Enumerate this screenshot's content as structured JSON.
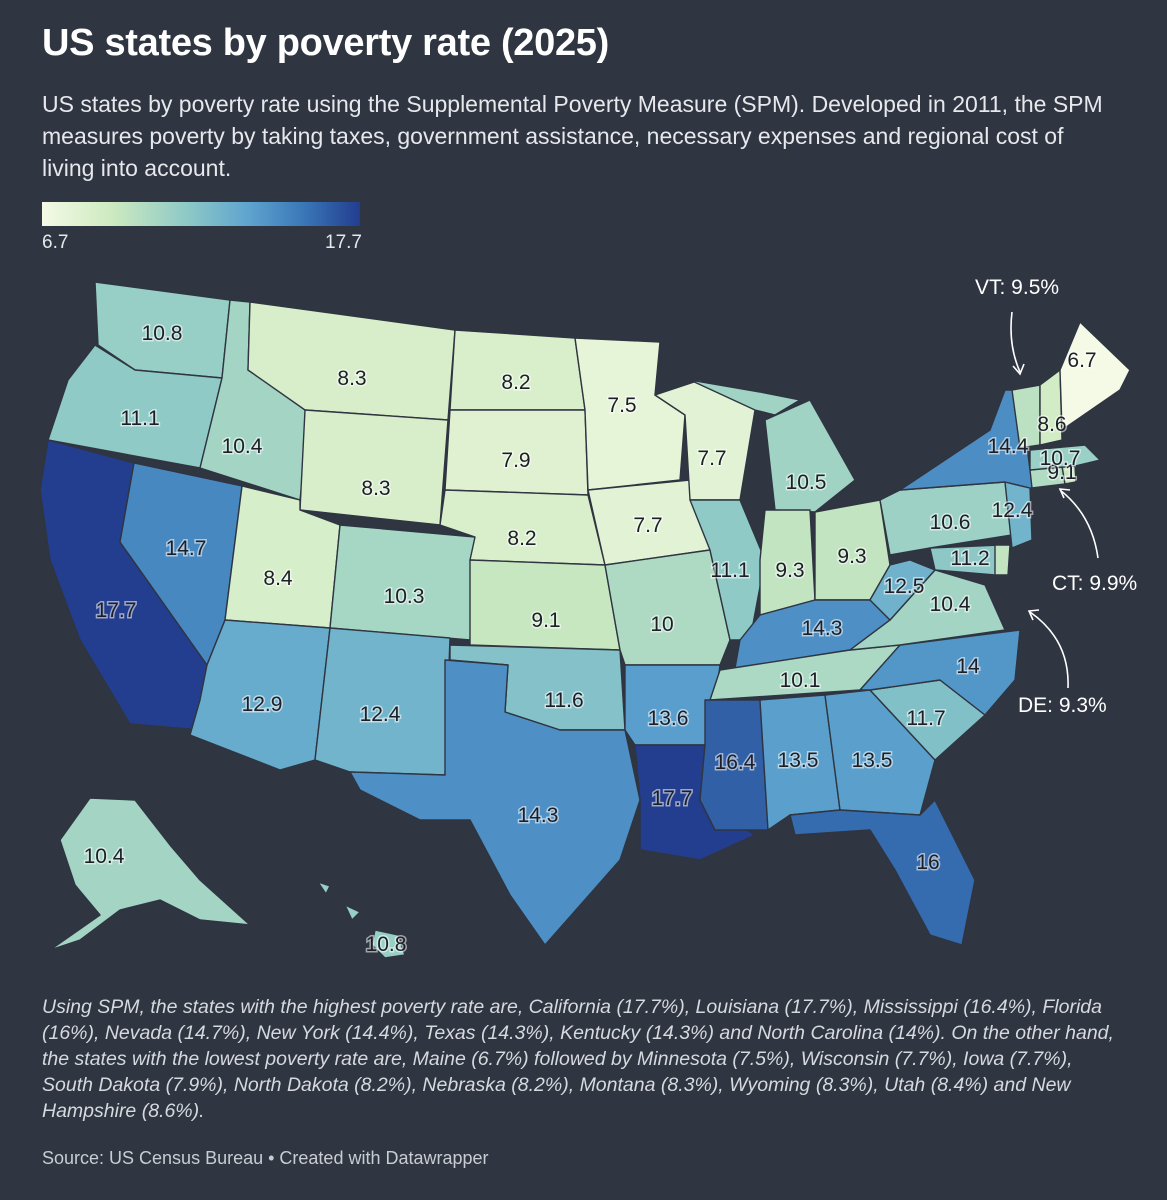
{
  "title": "US states by poverty rate (2025)",
  "subtitle": "US states by poverty rate using the Supplemental Poverty Measure (SPM). Developed in 2011, the SPM measures poverty by taking taxes, government assistance, necessary expenses and regional cost of living into account.",
  "legend": {
    "min": "6.7",
    "max": "17.7",
    "min_value": 6.7,
    "max_value": 17.7,
    "colors": [
      "#f4fae6",
      "#cdeac0",
      "#8fcac6",
      "#5ea4cf",
      "#3a78b8",
      "#233d8f"
    ]
  },
  "states": {
    "WA": {
      "label": "10.8",
      "value": 10.8
    },
    "OR": {
      "label": "11.1",
      "value": 11.1
    },
    "CA": {
      "label": "17.7",
      "value": 17.7
    },
    "NV": {
      "label": "14.7",
      "value": 14.7
    },
    "ID": {
      "label": "10.4",
      "value": 10.4
    },
    "MT": {
      "label": "8.3",
      "value": 8.3
    },
    "WY": {
      "label": "8.3",
      "value": 8.3
    },
    "UT": {
      "label": "8.4",
      "value": 8.4
    },
    "AZ": {
      "label": "12.9",
      "value": 12.9
    },
    "CO": {
      "label": "10.3",
      "value": 10.3
    },
    "NM": {
      "label": "12.4",
      "value": 12.4
    },
    "ND": {
      "label": "8.2",
      "value": 8.2
    },
    "SD": {
      "label": "7.9",
      "value": 7.9
    },
    "NE": {
      "label": "8.2",
      "value": 8.2
    },
    "KS": {
      "label": "9.1",
      "value": 9.1
    },
    "OK": {
      "label": "11.6",
      "value": 11.6
    },
    "TX": {
      "label": "14.3",
      "value": 14.3
    },
    "MN": {
      "label": "7.5",
      "value": 7.5
    },
    "IA": {
      "label": "7.7",
      "value": 7.7
    },
    "MO": {
      "label": "10",
      "value": 10
    },
    "AR": {
      "label": "13.6",
      "value": 13.6
    },
    "LA": {
      "label": "17.7",
      "value": 17.7
    },
    "WI": {
      "label": "7.7",
      "value": 7.7
    },
    "IL": {
      "label": "11.1",
      "value": 11.1
    },
    "MI": {
      "label": "10.5",
      "value": 10.5
    },
    "IN": {
      "label": "9.3",
      "value": 9.3
    },
    "OH": {
      "label": "9.3",
      "value": 9.3
    },
    "KY": {
      "label": "14.3",
      "value": 14.3
    },
    "TN": {
      "label": "10.1",
      "value": 10.1
    },
    "MS": {
      "label": "16.4",
      "value": 16.4
    },
    "AL": {
      "label": "13.5",
      "value": 13.5
    },
    "GA": {
      "label": "13.5",
      "value": 13.5
    },
    "FL": {
      "label": "16",
      "value": 16
    },
    "SC": {
      "label": "11.7",
      "value": 11.7
    },
    "NC": {
      "label": "14",
      "value": 14
    },
    "VA": {
      "label": "10.4",
      "value": 10.4
    },
    "WV": {
      "label": "12.5",
      "value": 12.5
    },
    "MD": {
      "label": "11.2",
      "value": 11.2
    },
    "DE": {
      "label": "",
      "value": 9.3
    },
    "PA": {
      "label": "10.6",
      "value": 10.6
    },
    "NJ": {
      "label": "12.4",
      "value": 12.4
    },
    "NY": {
      "label": "14.4",
      "value": 14.4
    },
    "CT": {
      "label": "",
      "value": 9.9
    },
    "RI": {
      "label": "9.1",
      "value": 9.1
    },
    "MA": {
      "label": "10.7",
      "value": 10.7
    },
    "VT": {
      "label": "",
      "value": 9.5
    },
    "NH": {
      "label": "8.6",
      "value": 8.6
    },
    "ME": {
      "label": "6.7",
      "value": 6.7
    },
    "AK": {
      "label": "10.4",
      "value": 10.4
    },
    "HI": {
      "label": "10.8",
      "value": 10.8
    }
  },
  "callouts": {
    "vt": "VT: 9.5%",
    "ct": "CT: 9.9%",
    "de": "DE: 9.3%"
  },
  "notes": "Using SPM, the states with the highest poverty rate are, California (17.7%), Louisiana (17.7%), Mississippi (16.4%), Florida (16%), Nevada (14.7%), New York (14.4%), Texas (14.3%), Kentucky (14.3%) and North Carolina (14%). On the other hand, the states with the lowest poverty rate are, Maine (6.7%) followed by Minnesota (7.5%), Wisconsin (7.7%), Iowa (7.7%), South Dakota (7.9%), North Dakota (8.2%), Nebraska (8.2%), Montana (8.3%), Wyoming (8.3%), Utah (8.4%) and New Hampshire (8.6%).",
  "source": "Source: US Census Bureau • Created with Datawrapper"
}
